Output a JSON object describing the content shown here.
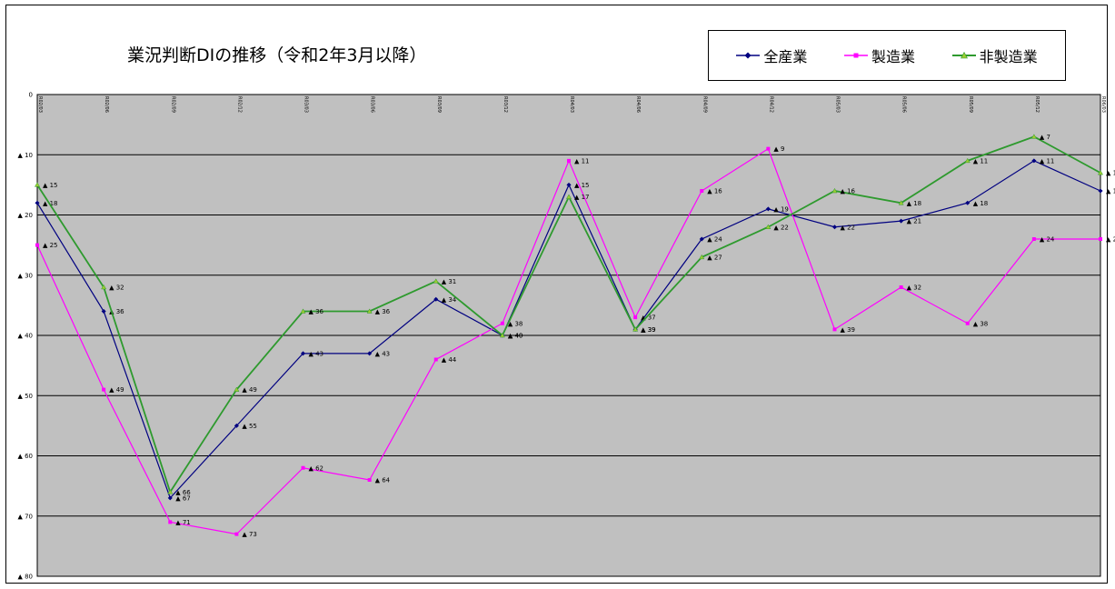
{
  "chart_data": {
    "type": "line",
    "title": "業況判断DIの推移（令和2年3月以降）",
    "xlabel": "",
    "ylabel": "",
    "categories": [
      "R02/03",
      "R02/06",
      "R02/09",
      "R02/12",
      "R03/03",
      "R03/06",
      "R03/09",
      "R03/12",
      "R04/03",
      "R04/06",
      "R04/09",
      "R04/12",
      "R05/03",
      "R05/06",
      "R05/09",
      "R05/12",
      "R06/03"
    ],
    "y_tick_labels": [
      "0",
      "▲ 10",
      "▲ 20",
      "▲ 30",
      "▲ 40",
      "▲ 50",
      "▲ 60",
      "▲ 70",
      "▲ 80"
    ],
    "y_ticks": [
      0,
      -10,
      -20,
      -30,
      -40,
      -50,
      -60,
      -70,
      -80
    ],
    "ylim": [
      -80,
      0
    ],
    "grid": true,
    "legend_position": "top-right",
    "plot_background": "#c0c0c0",
    "series": [
      {
        "name": "全産業",
        "color": "#000080",
        "marker": "diamond",
        "values": [
          -18,
          -36,
          -67,
          -55,
          -43,
          -43,
          -34,
          -40,
          -15,
          -39,
          -24,
          -19,
          -22,
          -21,
          -18,
          -11,
          -16
        ],
        "labels": [
          "▲ 18",
          "▲ 36",
          "▲ 67",
          "▲ 55",
          "▲ 43",
          "▲ 43",
          "▲ 34",
          "▲ 40",
          "▲ 15",
          "▲ 39",
          "▲ 24",
          "▲ 19",
          "▲ 22",
          "▲ 21",
          "▲ 18",
          "▲ 11",
          "▲ 16"
        ]
      },
      {
        "name": "製造業",
        "color": "#ff00ff",
        "marker": "square",
        "values": [
          -25,
          -49,
          -71,
          -73,
          -62,
          -64,
          -44,
          -38,
          -11,
          -37,
          -16,
          -9,
          -39,
          -32,
          -38,
          -24,
          -24
        ],
        "labels": [
          "▲ 25",
          "▲ 49",
          "▲ 71",
          "▲ 73",
          "▲ 62",
          "▲ 64",
          "▲ 44",
          "▲ 38",
          "▲ 11",
          "▲ 37",
          "▲ 16",
          "▲ 9",
          "▲ 39",
          "▲ 32",
          "▲ 38",
          "▲ 24",
          "▲ 24"
        ]
      },
      {
        "name": "非製造業",
        "color": "#2e9a2e",
        "marker": "triangle",
        "values": [
          -15,
          -32,
          -66,
          -49,
          -36,
          -36,
          -31,
          -40,
          -17,
          -39,
          -27,
          -22,
          -16,
          -18,
          -11,
          -7,
          -13
        ],
        "labels": [
          "▲ 15",
          "▲ 32",
          "▲ 66",
          "▲ 49",
          "▲ 36",
          "▲ 36",
          "▲ 31",
          "▲ 40",
          "▲ 17",
          "▲ 39",
          "▲ 27",
          "▲ 22",
          "▲ 16",
          "▲ 18",
          "▲ 11",
          "▲ 7",
          "▲ 13"
        ]
      }
    ]
  }
}
